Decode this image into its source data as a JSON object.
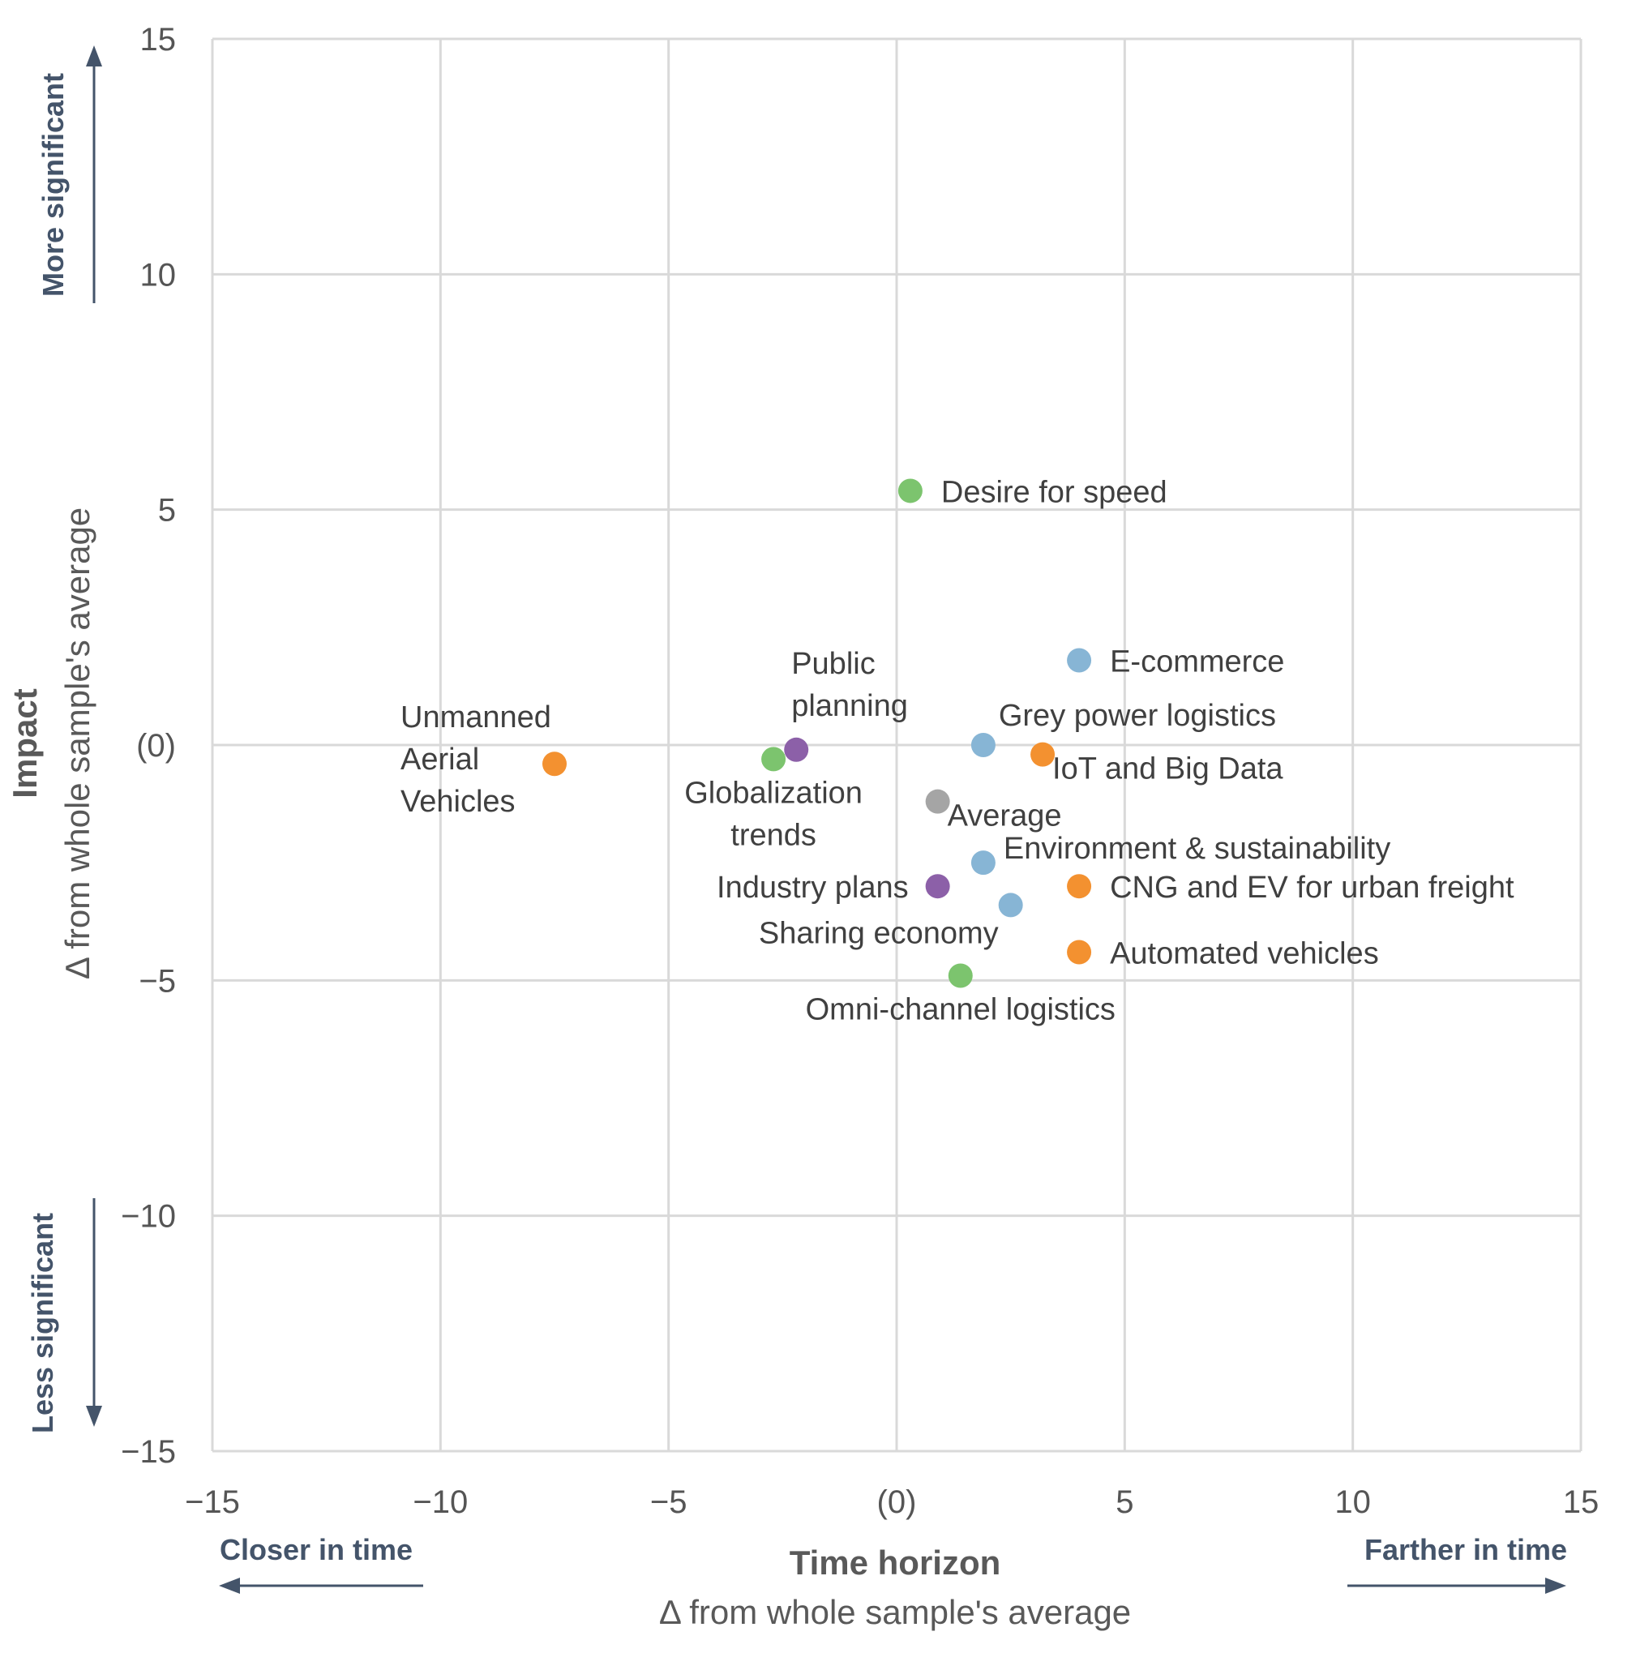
{
  "chart_data": {
    "type": "scatter",
    "xlim": [
      -15,
      15
    ],
    "ylim": [
      -15,
      15
    ],
    "x_ticks": [
      -15,
      -10,
      -5,
      0,
      5,
      10,
      15
    ],
    "y_ticks": [
      -15,
      -10,
      -5,
      0,
      5,
      10,
      15
    ],
    "x_tick_labels": [
      "−15",
      "−10",
      "−5",
      "(0)",
      "5",
      "10",
      "15"
    ],
    "y_tick_labels": [
      "−15",
      "−10",
      "−5",
      "(0)",
      "5",
      "10",
      "15"
    ],
    "xlabel": "Time horizon",
    "xlabel_sub": "Δ from whole sample's average",
    "ylabel": "Impact",
    "ylabel_sub": "Δ from whole sample's average",
    "x_low_label": "Closer in time",
    "x_high_label": "Farther in time",
    "y_high_label": "More significant",
    "y_low_label": "Less significant",
    "grid": true,
    "colors": {
      "green": "#7cc46e",
      "blue": "#87b5d5",
      "orange": "#f39130",
      "purple": "#8c60a8",
      "gray": "#a5a5a5"
    },
    "points": [
      {
        "name": "Desire for speed",
        "lines": [
          "Desire for speed"
        ],
        "x": 0.3,
        "y": 5.4,
        "color": "green",
        "anchor": "right"
      },
      {
        "name": "E-commerce",
        "lines": [
          "E-commerce"
        ],
        "x": 4.0,
        "y": 1.8,
        "color": "blue",
        "anchor": "right"
      },
      {
        "name": "Grey power logistics",
        "lines": [
          "Grey power logistics"
        ],
        "x": 1.9,
        "y": 0.0,
        "color": "blue",
        "anchor": "above"
      },
      {
        "name": "IoT and Big Data",
        "lines": [
          "IoT and Big Data"
        ],
        "x": 3.2,
        "y": -0.2,
        "color": "orange",
        "anchor": "below-right"
      },
      {
        "name": "Public planning",
        "lines": [
          "Public",
          "planning"
        ],
        "x": -2.2,
        "y": -0.1,
        "color": "purple",
        "anchor": "above-left"
      },
      {
        "name": "Globalization trends",
        "lines": [
          "Globalization",
          "trends"
        ],
        "x": -2.7,
        "y": -0.3,
        "color": "green",
        "anchor": "below"
      },
      {
        "name": "Unmanned Aerial Vehicles",
        "lines": [
          "Unmanned",
          "Aerial",
          "Vehicles"
        ],
        "x": -7.5,
        "y": -0.4,
        "color": "orange",
        "anchor": "left-block"
      },
      {
        "name": "Average",
        "lines": [
          "Average"
        ],
        "x": 0.9,
        "y": -1.2,
        "color": "gray",
        "anchor": "below-right"
      },
      {
        "name": "Environment & sustainability",
        "lines": [
          "Environment & sustainability"
        ],
        "x": 1.9,
        "y": -2.5,
        "color": "blue",
        "anchor": "above-right"
      },
      {
        "name": "Industry plans",
        "lines": [
          "Industry plans"
        ],
        "x": 0.9,
        "y": -3.0,
        "color": "purple",
        "anchor": "left"
      },
      {
        "name": "CNG and EV for urban freight",
        "lines": [
          "CNG and EV for urban freight"
        ],
        "x": 4.0,
        "y": -3.0,
        "color": "orange",
        "anchor": "right"
      },
      {
        "name": "Sharing economy",
        "lines": [
          "Sharing economy"
        ],
        "x": 2.5,
        "y": -3.4,
        "color": "blue",
        "anchor": "below-left"
      },
      {
        "name": "Automated vehicles",
        "lines": [
          "Automated vehicles"
        ],
        "x": 4.0,
        "y": -4.4,
        "color": "orange",
        "anchor": "right"
      },
      {
        "name": "Omni-channel logistics",
        "lines": [
          "Omni-channel logistics"
        ],
        "x": 1.4,
        "y": -4.9,
        "color": "green",
        "anchor": "below"
      }
    ]
  }
}
